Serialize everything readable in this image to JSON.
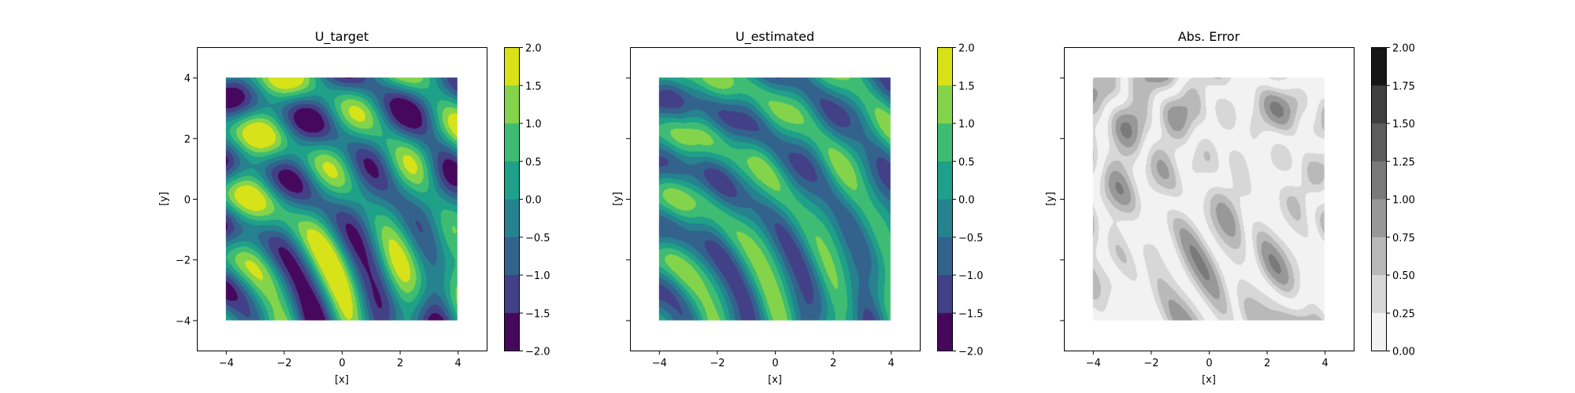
{
  "chart_data": [
    {
      "type": "heatmap",
      "title": "U_target",
      "xlabel": "[x]",
      "ylabel": "[y]",
      "xlim": [
        -5,
        5
      ],
      "ylim": [
        -5,
        5
      ],
      "data_extent": [
        -4,
        4
      ],
      "x_ticks": [
        "−4",
        "−2",
        "0",
        "2",
        "4"
      ],
      "y_ticks": [
        "−4",
        "−2",
        "0",
        "2",
        "4"
      ],
      "show_y_tick_labels": true,
      "colormap": "viridis",
      "colorbar": {
        "levels": [
          -2.0,
          -1.5,
          -1.0,
          -0.5,
          0.0,
          0.5,
          1.0,
          1.5,
          2.0
        ],
        "tick_labels": [
          "−2.0",
          "−1.5",
          "−1.0",
          "−0.5",
          "0.0",
          "0.5",
          "1.0",
          "1.5",
          "2.0"
        ],
        "colors": [
          "#46085c",
          "#424086",
          "#33638d",
          "#26828e",
          "#1fa088",
          "#3fbc73",
          "#84d44b",
          "#d8e219"
        ]
      }
    },
    {
      "type": "heatmap",
      "title": "U_estimated",
      "xlabel": "[x]",
      "ylabel": "[y]",
      "xlim": [
        -5,
        5
      ],
      "ylim": [
        -5,
        5
      ],
      "data_extent": [
        -4,
        4
      ],
      "x_ticks": [
        "−4",
        "−2",
        "0",
        "2",
        "4"
      ],
      "y_ticks": [
        "−4",
        "−2",
        "0",
        "2",
        "4"
      ],
      "show_y_tick_labels": false,
      "colormap": "viridis",
      "colorbar": {
        "levels": [
          -2.0,
          -1.5,
          -1.0,
          -0.5,
          0.0,
          0.5,
          1.0,
          1.5,
          2.0
        ],
        "tick_labels": [
          "−2.0",
          "−1.5",
          "−1.0",
          "−0.5",
          "0.0",
          "0.5",
          "1.0",
          "1.5",
          "2.0"
        ],
        "colors": [
          "#46085c",
          "#424086",
          "#33638d",
          "#26828e",
          "#1fa088",
          "#3fbc73",
          "#84d44b",
          "#d8e219"
        ]
      }
    },
    {
      "type": "heatmap",
      "title": "Abs. Error",
      "xlabel": "[x]",
      "ylabel": "[y]",
      "xlim": [
        -5,
        5
      ],
      "ylim": [
        -5,
        5
      ],
      "data_extent": [
        -4,
        4
      ],
      "x_ticks": [
        "−4",
        "−2",
        "0",
        "2",
        "4"
      ],
      "y_ticks": [
        "−4",
        "−2",
        "0",
        "2",
        "4"
      ],
      "show_y_tick_labels": false,
      "colormap": "Greys",
      "colorbar": {
        "levels": [
          0.0,
          0.25,
          0.5,
          0.75,
          1.0,
          1.25,
          1.5,
          1.75,
          2.0
        ],
        "tick_labels": [
          "0.00",
          "0.25",
          "0.50",
          "0.75",
          "1.00",
          "1.25",
          "1.50",
          "1.75",
          "2.00"
        ],
        "colors": [
          "#f2f2f2",
          "#d7d7d7",
          "#b9b9b9",
          "#989898",
          "#7a7a7a",
          "#5d5d5d",
          "#3f3f3f",
          "#161616"
        ]
      }
    }
  ]
}
